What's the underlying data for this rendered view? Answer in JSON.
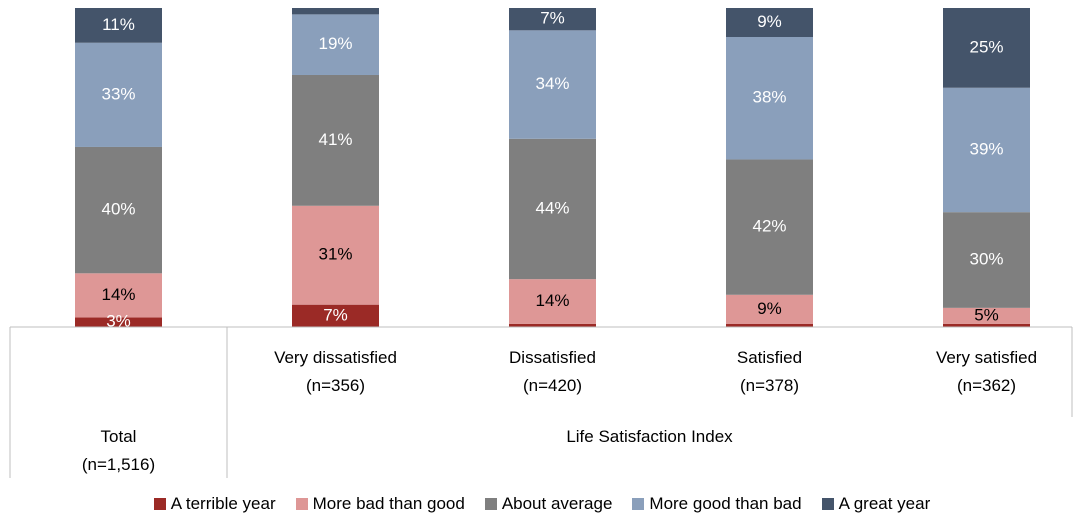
{
  "chart_data": {
    "type": "bar",
    "stacked": true,
    "title": "",
    "xlabel": "",
    "ylabel": "",
    "ylim": [
      0,
      100
    ],
    "grid": false,
    "legend_position": "bottom",
    "group_label": "Life Satisfaction Index",
    "categories": [
      {
        "name": "Total",
        "n": "(n=1,516)"
      },
      {
        "name": "Very dissatisfied",
        "n": "(n=356)"
      },
      {
        "name": "Dissatisfied",
        "n": "(n=420)"
      },
      {
        "name": "Satisfied",
        "n": "(n=378)"
      },
      {
        "name": "Very satisfied",
        "n": "(n=362)"
      }
    ],
    "series": [
      {
        "name": "A terrible year",
        "color": "#9b2a26",
        "text_color": "#ffffff",
        "values": [
          3,
          7,
          1,
          1,
          1
        ],
        "labels": [
          "3%",
          "7%",
          "",
          "",
          ""
        ]
      },
      {
        "name": "More bad than good",
        "color": "#de9796",
        "text_color": "#000000",
        "values": [
          14,
          31,
          14,
          9,
          5
        ],
        "labels": [
          "14%",
          "31%",
          "14%",
          "9%",
          "5%"
        ]
      },
      {
        "name": "About average",
        "color": "#7f7f7f",
        "text_color": "#ffffff",
        "values": [
          40,
          41,
          44,
          42,
          30
        ],
        "labels": [
          "40%",
          "41%",
          "44%",
          "42%",
          "30%"
        ]
      },
      {
        "name": "More good than bad",
        "color": "#8a9fbb",
        "text_color": "#ffffff",
        "values": [
          33,
          19,
          34,
          38,
          39
        ],
        "labels": [
          "33%",
          "19%",
          "34%",
          "38%",
          "39%"
        ]
      },
      {
        "name": "A great year",
        "color": "#44546a",
        "text_color": "#ffffff",
        "values": [
          11,
          2,
          7,
          9,
          25
        ],
        "labels": [
          "11%",
          "",
          "7%",
          "9%",
          "25%"
        ]
      }
    ]
  }
}
